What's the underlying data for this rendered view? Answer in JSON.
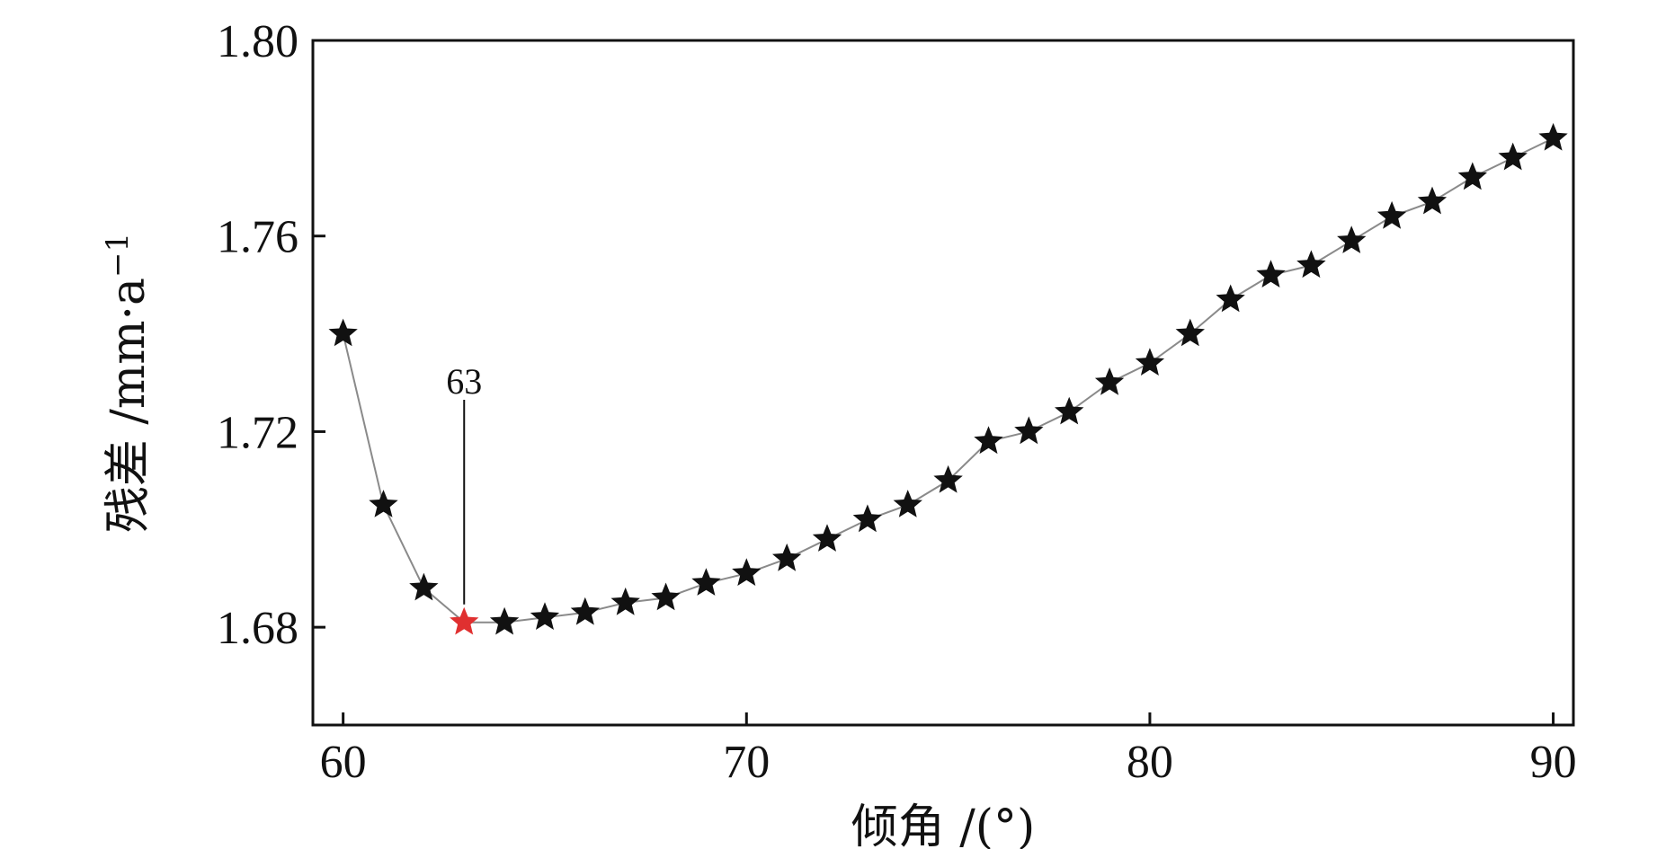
{
  "chart_data": {
    "type": "line",
    "marker": "star",
    "title": "",
    "xlabel": "倾角 /(°)",
    "ylabel": "残差 /mm·a",
    "ylabel_superscript": "−1",
    "xlim": [
      59.25,
      90.5
    ],
    "ylim": [
      1.66,
      1.8
    ],
    "xticks": [
      60,
      70,
      80,
      90
    ],
    "xtick_labels": [
      "60",
      "70",
      "80",
      "90"
    ],
    "yticks": [
      1.68,
      1.72,
      1.76,
      1.8
    ],
    "ytick_labels": [
      "1.68",
      "1.72",
      "1.76",
      "1.80"
    ],
    "grid": false,
    "legend": "none",
    "series": [
      {
        "x": [
          60,
          61,
          62,
          63,
          64,
          65,
          66,
          67,
          68,
          69,
          70,
          71,
          72,
          73,
          74,
          75,
          76,
          77,
          78,
          79,
          80,
          81,
          82,
          83,
          84,
          85,
          86,
          87,
          88,
          89,
          90
        ],
        "y": [
          1.74,
          1.705,
          1.688,
          1.681,
          1.681,
          1.682,
          1.683,
          1.685,
          1.686,
          1.689,
          1.691,
          1.694,
          1.698,
          1.702,
          1.705,
          1.71,
          1.718,
          1.72,
          1.724,
          1.73,
          1.734,
          1.74,
          1.747,
          1.752,
          1.754,
          1.759,
          1.764,
          1.767,
          1.772,
          1.776,
          1.78
        ]
      }
    ],
    "highlight": {
      "x": 63,
      "y": 1.681,
      "label": "63"
    },
    "colors": {
      "line": "#8a8a8a",
      "marker": "#111111",
      "highlight_marker": "#e03030",
      "axis": "#111111"
    }
  }
}
